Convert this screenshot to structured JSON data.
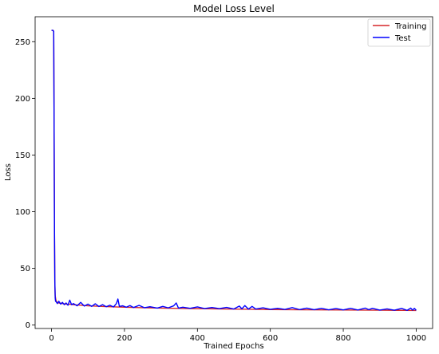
{
  "chart_data": {
    "type": "line",
    "title": "Model Loss Level",
    "xlabel": "Trained Epochs",
    "ylabel": "Loss",
    "xlim": [
      -45,
      1045
    ],
    "ylim": [
      -3,
      272
    ],
    "xticks": [
      0,
      200,
      400,
      600,
      800,
      1000
    ],
    "yticks": [
      0,
      50,
      100,
      150,
      200,
      250
    ],
    "grid": false,
    "legend_position": "top-right",
    "series": [
      {
        "name": "Training",
        "color": "#d62728",
        "points": [
          [
            0,
            260
          ],
          [
            4,
            260
          ],
          [
            6,
            259
          ],
          [
            7,
            180
          ],
          [
            8,
            90
          ],
          [
            9,
            38
          ],
          [
            10,
            26
          ],
          [
            12,
            22
          ],
          [
            15,
            20
          ],
          [
            20,
            19.5
          ],
          [
            30,
            19
          ],
          [
            40,
            18.5
          ],
          [
            50,
            18.4
          ],
          [
            60,
            18
          ],
          [
            80,
            17.5
          ],
          [
            100,
            17
          ],
          [
            150,
            16.3
          ],
          [
            200,
            15.8
          ],
          [
            250,
            15.3
          ],
          [
            300,
            15
          ],
          [
            350,
            14.7
          ],
          [
            400,
            14.5
          ],
          [
            450,
            14.3
          ],
          [
            500,
            14.1
          ],
          [
            550,
            13.9
          ],
          [
            600,
            13.7
          ],
          [
            650,
            13.6
          ],
          [
            700,
            13.5
          ],
          [
            750,
            13.4
          ],
          [
            800,
            13.3
          ],
          [
            850,
            13.2
          ],
          [
            900,
            13.1
          ],
          [
            950,
            13
          ],
          [
            1000,
            12.9
          ]
        ]
      },
      {
        "name": "Test",
        "color": "#0000ff",
        "points": [
          [
            0,
            260
          ],
          [
            4,
            260
          ],
          [
            6,
            259
          ],
          [
            7,
            181
          ],
          [
            8,
            92
          ],
          [
            9,
            40
          ],
          [
            10,
            24
          ],
          [
            11,
            21
          ],
          [
            13,
            20.5
          ],
          [
            16,
            19
          ],
          [
            20,
            21
          ],
          [
            25,
            18.5
          ],
          [
            30,
            20
          ],
          [
            35,
            18
          ],
          [
            40,
            19.5
          ],
          [
            45,
            17.5
          ],
          [
            50,
            22
          ],
          [
            55,
            18
          ],
          [
            60,
            19
          ],
          [
            70,
            17
          ],
          [
            80,
            20
          ],
          [
            90,
            16.8
          ],
          [
            100,
            18.5
          ],
          [
            110,
            16.5
          ],
          [
            120,
            18.8
          ],
          [
            130,
            16.4
          ],
          [
            140,
            18
          ],
          [
            150,
            16.2
          ],
          [
            160,
            17.5
          ],
          [
            170,
            16
          ],
          [
            178,
            19
          ],
          [
            182,
            23
          ],
          [
            186,
            16.5
          ],
          [
            195,
            17
          ],
          [
            205,
            15.8
          ],
          [
            215,
            17.2
          ],
          [
            225,
            15.5
          ],
          [
            240,
            17.4
          ],
          [
            255,
            15.3
          ],
          [
            270,
            16.2
          ],
          [
            290,
            15
          ],
          [
            305,
            16.5
          ],
          [
            320,
            15.2
          ],
          [
            335,
            17
          ],
          [
            342,
            19.5
          ],
          [
            348,
            15
          ],
          [
            360,
            15.8
          ],
          [
            380,
            14.8
          ],
          [
            400,
            16
          ],
          [
            420,
            14.6
          ],
          [
            440,
            15.5
          ],
          [
            460,
            14.5
          ],
          [
            480,
            15.6
          ],
          [
            500,
            14.2
          ],
          [
            515,
            16.8
          ],
          [
            522,
            14.3
          ],
          [
            530,
            17.2
          ],
          [
            540,
            14.1
          ],
          [
            550,
            16.5
          ],
          [
            560,
            14.2
          ],
          [
            580,
            15.2
          ],
          [
            600,
            13.9
          ],
          [
            620,
            14.8
          ],
          [
            640,
            13.8
          ],
          [
            660,
            15.4
          ],
          [
            680,
            13.7
          ],
          [
            700,
            15
          ],
          [
            720,
            13.6
          ],
          [
            740,
            14.8
          ],
          [
            760,
            13.5
          ],
          [
            780,
            14.6
          ],
          [
            800,
            13.4
          ],
          [
            820,
            14.8
          ],
          [
            840,
            13.3
          ],
          [
            860,
            15
          ],
          [
            870,
            13.6
          ],
          [
            880,
            14.8
          ],
          [
            900,
            13.2
          ],
          [
            920,
            14.3
          ],
          [
            940,
            13.1
          ],
          [
            960,
            14.7
          ],
          [
            975,
            13
          ],
          [
            985,
            15
          ],
          [
            990,
            13.2
          ],
          [
            995,
            14.8
          ],
          [
            1000,
            13
          ]
        ]
      }
    ]
  }
}
